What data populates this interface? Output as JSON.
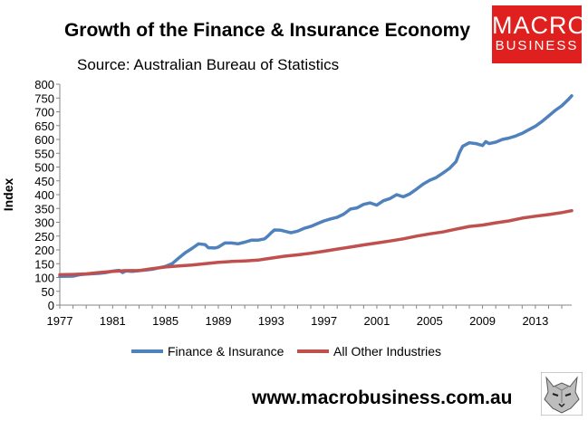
{
  "chart_data": {
    "type": "line",
    "title": "Growth of the Finance & Insurance Economy",
    "subtitle": "Source: Australian Bureau of Statistics",
    "xlabel": "",
    "ylabel": "Index",
    "ylim": [
      0,
      800
    ],
    "xlim": [
      1977,
      2015.75
    ],
    "yticks": [
      0,
      50,
      100,
      150,
      200,
      250,
      300,
      350,
      400,
      450,
      500,
      550,
      600,
      650,
      700,
      750,
      800
    ],
    "xticks": [
      "1977",
      "1981",
      "1985",
      "1989",
      "1993",
      "1997",
      "2001",
      "2005",
      "2009",
      "2013"
    ],
    "grid": false,
    "legend_position": "bottom",
    "series": [
      {
        "name": "Finance & Insurance",
        "color": "#4f81bd",
        "points": [
          [
            1977,
            104
          ],
          [
            1978,
            105
          ],
          [
            1978.5,
            110
          ],
          [
            1979,
            112
          ],
          [
            1980,
            115
          ],
          [
            1980.5,
            118
          ],
          [
            1981,
            123
          ],
          [
            1981.5,
            126
          ],
          [
            1981.75,
            118
          ],
          [
            1982,
            124
          ],
          [
            1982.5,
            122
          ],
          [
            1983,
            125
          ],
          [
            1983.5,
            127
          ],
          [
            1984,
            130
          ],
          [
            1984.5,
            135
          ],
          [
            1985,
            140
          ],
          [
            1985.5,
            150
          ],
          [
            1986,
            170
          ],
          [
            1986.5,
            190
          ],
          [
            1987,
            205
          ],
          [
            1987.5,
            222
          ],
          [
            1988,
            219
          ],
          [
            1988.25,
            208
          ],
          [
            1988.75,
            207
          ],
          [
            1989,
            210
          ],
          [
            1989.5,
            225
          ],
          [
            1990,
            225
          ],
          [
            1990.5,
            222
          ],
          [
            1991,
            228
          ],
          [
            1991.5,
            235
          ],
          [
            1992,
            235
          ],
          [
            1992.5,
            240
          ],
          [
            1992.75,
            250
          ],
          [
            1993,
            262
          ],
          [
            1993.25,
            272
          ],
          [
            1993.75,
            271
          ],
          [
            1994,
            268
          ],
          [
            1994.5,
            262
          ],
          [
            1995,
            268
          ],
          [
            1995.5,
            278
          ],
          [
            1996,
            285
          ],
          [
            1996.5,
            295
          ],
          [
            1997,
            305
          ],
          [
            1997.5,
            312
          ],
          [
            1998,
            318
          ],
          [
            1998.5,
            330
          ],
          [
            1999,
            348
          ],
          [
            1999.5,
            352
          ],
          [
            2000,
            365
          ],
          [
            2000.5,
            370
          ],
          [
            2001,
            362
          ],
          [
            2001.5,
            378
          ],
          [
            2002,
            386
          ],
          [
            2002.5,
            400
          ],
          [
            2003,
            392
          ],
          [
            2003.5,
            403
          ],
          [
            2004,
            420
          ],
          [
            2004.5,
            438
          ],
          [
            2005,
            452
          ],
          [
            2005.5,
            462
          ],
          [
            2006,
            478
          ],
          [
            2006.5,
            495
          ],
          [
            2007,
            520
          ],
          [
            2007.25,
            552
          ],
          [
            2007.5,
            575
          ],
          [
            2008,
            588
          ],
          [
            2008.5,
            585
          ],
          [
            2009,
            578
          ],
          [
            2009.25,
            592
          ],
          [
            2009.5,
            585
          ],
          [
            2010,
            590
          ],
          [
            2010.5,
            600
          ],
          [
            2011,
            605
          ],
          [
            2011.5,
            612
          ],
          [
            2012,
            622
          ],
          [
            2012.5,
            635
          ],
          [
            2013,
            648
          ],
          [
            2013.5,
            665
          ],
          [
            2014,
            685
          ],
          [
            2014.5,
            705
          ],
          [
            2015,
            722
          ],
          [
            2015.5,
            745
          ],
          [
            2015.75,
            758
          ]
        ]
      },
      {
        "name": "All Other Industries",
        "color": "#c0504d",
        "points": [
          [
            1977,
            110
          ],
          [
            1978,
            111
          ],
          [
            1979,
            113
          ],
          [
            1980,
            118
          ],
          [
            1981,
            122
          ],
          [
            1982,
            125
          ],
          [
            1983,
            125
          ],
          [
            1984,
            132
          ],
          [
            1985,
            138
          ],
          [
            1986,
            142
          ],
          [
            1987,
            145
          ],
          [
            1988,
            150
          ],
          [
            1989,
            155
          ],
          [
            1990,
            158
          ],
          [
            1991,
            160
          ],
          [
            1992,
            163
          ],
          [
            1993,
            170
          ],
          [
            1994,
            177
          ],
          [
            1995,
            182
          ],
          [
            1996,
            188
          ],
          [
            1997,
            195
          ],
          [
            1998,
            203
          ],
          [
            1999,
            210
          ],
          [
            2000,
            218
          ],
          [
            2001,
            225
          ],
          [
            2002,
            232
          ],
          [
            2003,
            240
          ],
          [
            2004,
            250
          ],
          [
            2005,
            258
          ],
          [
            2006,
            265
          ],
          [
            2007,
            275
          ],
          [
            2008,
            285
          ],
          [
            2009,
            290
          ],
          [
            2010,
            298
          ],
          [
            2011,
            305
          ],
          [
            2012,
            315
          ],
          [
            2013,
            322
          ],
          [
            2014,
            328
          ],
          [
            2015,
            335
          ],
          [
            2015.75,
            342
          ]
        ]
      }
    ]
  },
  "branding": {
    "logo_line1": "MACRO",
    "logo_line2": "BUSINESS",
    "website": "www.macrobusiness.com.au",
    "logo_color": "#e0201f"
  }
}
